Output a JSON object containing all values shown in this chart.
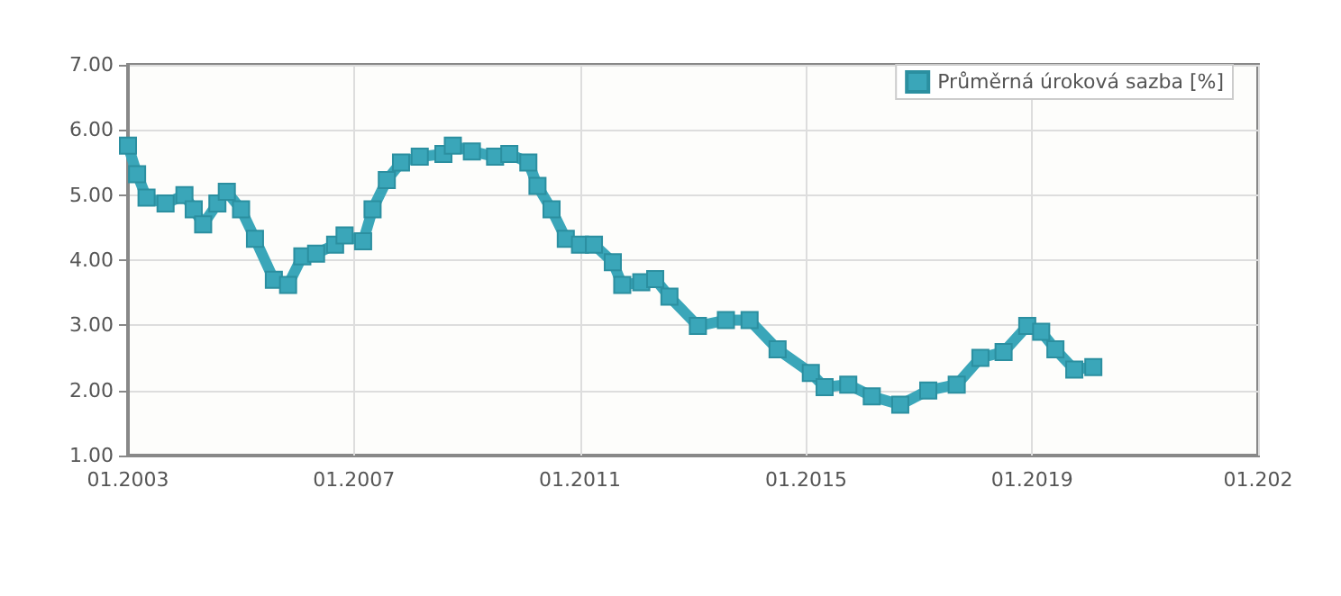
{
  "chart_data": {
    "type": "line",
    "marker": "square",
    "grid": true,
    "legend": "top right",
    "xlim": [
      "2003-01",
      "2023-01"
    ],
    "xticks": [
      {
        "value": "2003-01",
        "label": "01.2003"
      },
      {
        "value": "2007-01",
        "label": "01.2007"
      },
      {
        "value": "2011-01",
        "label": "01.2011"
      },
      {
        "value": "2015-01",
        "label": "01.2015"
      },
      {
        "value": "2019-01",
        "label": "01.2019"
      },
      {
        "value": "2023-01",
        "label": "01.202"
      }
    ],
    "ylim": [
      1,
      7
    ],
    "yticks": [
      {
        "value": 1,
        "label": "1.00"
      },
      {
        "value": 2,
        "label": "2.00"
      },
      {
        "value": 3,
        "label": "3.00"
      },
      {
        "value": 4,
        "label": "4.00"
      },
      {
        "value": 5,
        "label": "5.00"
      },
      {
        "value": 6,
        "label": "6.00"
      },
      {
        "value": 7,
        "label": "7.00"
      }
    ],
    "x": [
      "2003-01",
      "2003-03",
      "2003-05",
      "2003-09",
      "2004-01",
      "2004-03",
      "2004-05",
      "2004-08",
      "2004-10",
      "2005-01",
      "2005-04",
      "2005-08",
      "2005-11",
      "2006-02",
      "2006-05",
      "2006-09",
      "2006-11",
      "2007-03",
      "2007-05",
      "2007-08",
      "2007-11",
      "2008-03",
      "2008-08",
      "2008-10",
      "2009-02",
      "2009-07",
      "2009-10",
      "2010-02",
      "2010-04",
      "2010-07",
      "2010-10",
      "2011-01",
      "2011-04",
      "2011-08",
      "2011-10",
      "2012-02",
      "2012-05",
      "2012-08",
      "2013-02",
      "2013-08",
      "2014-01",
      "2014-07",
      "2015-02",
      "2015-05",
      "2015-10",
      "2016-03",
      "2016-09",
      "2017-03",
      "2017-09",
      "2018-02",
      "2018-07",
      "2018-12",
      "2019-03",
      "2019-06",
      "2019-10",
      "2020-02"
    ],
    "series": [
      {
        "name": "Průměrná úroková sazba [%]",
        "color": "#3aa6b9",
        "values": [
          5.76,
          5.32,
          4.96,
          4.87,
          5.0,
          4.78,
          4.55,
          4.87,
          5.05,
          4.78,
          4.33,
          3.7,
          3.62,
          4.06,
          4.1,
          4.24,
          4.38,
          4.29,
          4.78,
          5.23,
          5.5,
          5.59,
          5.63,
          5.76,
          5.67,
          5.59,
          5.63,
          5.5,
          5.14,
          4.78,
          4.33,
          4.24,
          4.24,
          3.97,
          3.62,
          3.66,
          3.71,
          3.44,
          2.99,
          3.08,
          3.08,
          2.63,
          2.27,
          2.05,
          2.09,
          1.91,
          1.78,
          2.0,
          2.09,
          2.5,
          2.59,
          2.99,
          2.9,
          2.63,
          2.32,
          2.36
        ]
      }
    ]
  }
}
